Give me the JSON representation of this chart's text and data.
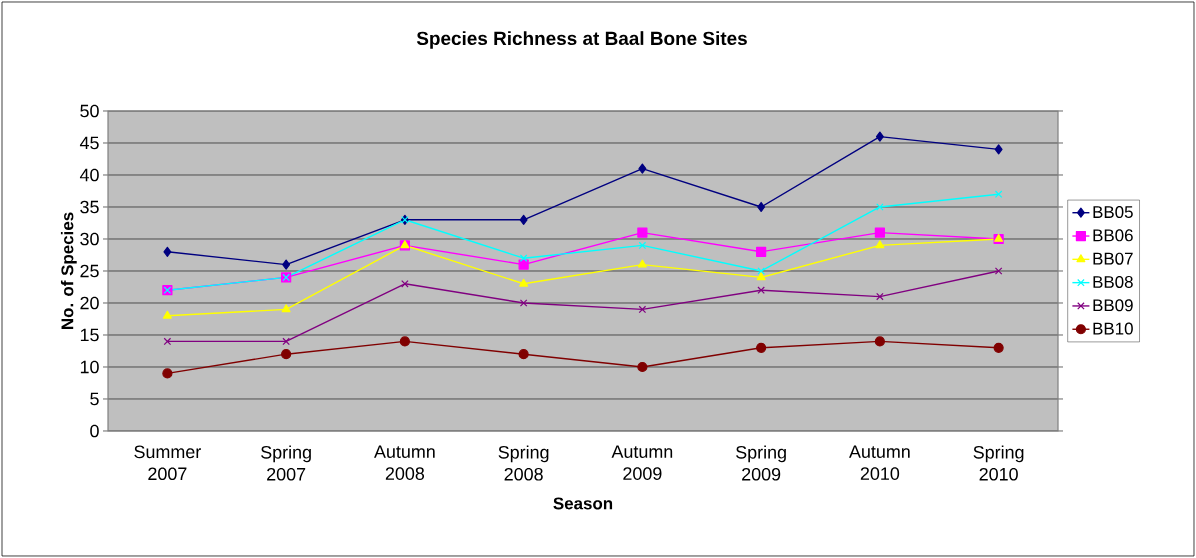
{
  "chart_data": {
    "type": "line",
    "title": "Species Richness at Baal Bone Sites",
    "xlabel": "Season",
    "ylabel": "No. of Species",
    "categories": [
      "Summer 2007",
      "Spring 2007",
      "Autumn 2008",
      "Spring 2008",
      "Autumn 2009",
      "Spring 2009",
      "Autumn 2010",
      "Spring 2010"
    ],
    "ylim": [
      0,
      50
    ],
    "yticks": [
      0,
      5,
      10,
      15,
      20,
      25,
      30,
      35,
      40,
      45,
      50
    ],
    "grid": "y",
    "legend": "right",
    "line_style": "solid",
    "series": [
      {
        "name": "BB05",
        "color": "#000080",
        "marker": "diamond",
        "values": [
          28,
          26,
          33,
          33,
          41,
          35,
          46,
          44
        ]
      },
      {
        "name": "BB06",
        "color": "#ff00ff",
        "marker": "square",
        "values": [
          22,
          24,
          29,
          26,
          31,
          28,
          31,
          30
        ]
      },
      {
        "name": "BB07",
        "color": "#ffff00",
        "marker": "triangle",
        "values": [
          18,
          19,
          29,
          23,
          26,
          24,
          29,
          30
        ]
      },
      {
        "name": "BB08",
        "color": "#00ffff",
        "marker": "cross",
        "values": [
          22,
          24,
          33,
          27,
          29,
          25,
          35,
          37
        ]
      },
      {
        "name": "BB09",
        "color": "#800080",
        "marker": "cross",
        "values": [
          14,
          14,
          23,
          20,
          19,
          22,
          21,
          25
        ]
      },
      {
        "name": "BB10",
        "color": "#800000",
        "marker": "circle",
        "values": [
          9,
          12,
          14,
          12,
          10,
          13,
          14,
          13
        ]
      }
    ]
  }
}
